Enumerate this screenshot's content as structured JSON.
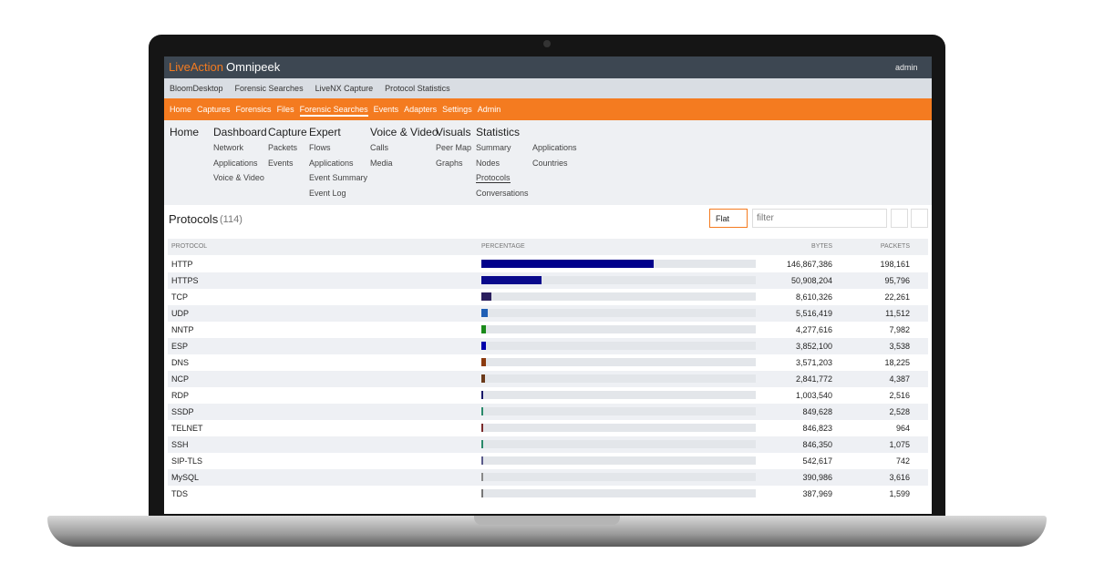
{
  "header": {
    "logo_brand": "LiveAction",
    "logo_product": "Omnipeek",
    "user": "admin"
  },
  "breadcrumb": [
    "BloomDesktop",
    "Forensic Searches",
    "LiveNX Capture",
    "Protocol Statistics"
  ],
  "nav": [
    "Home",
    "Captures",
    "Forensics",
    "Files",
    "Forensic Searches",
    "Events",
    "Adapters",
    "Settings",
    "Admin"
  ],
  "nav_active": 4,
  "menu": [
    {
      "title": "Home",
      "items": []
    },
    {
      "title": "Dashboard",
      "items": [
        "Network",
        "Applications",
        "Voice & Video"
      ]
    },
    {
      "title": "Capture",
      "items": [
        "Packets",
        "Events"
      ]
    },
    {
      "title": "Expert",
      "items": [
        "Flows",
        "Applications",
        "Event Summary",
        "Event Log"
      ]
    },
    {
      "title": "Voice & Video",
      "items": [
        "Calls",
        "Media"
      ]
    },
    {
      "title": "Visuals",
      "items": [
        "Peer Map",
        "Graphs"
      ]
    },
    {
      "title": "Statistics",
      "items": [
        "Summary",
        "Nodes",
        "Protocols",
        "Conversations"
      ],
      "more_items": [
        "Applications",
        "Countries"
      ]
    }
  ],
  "panel": {
    "title": "Protocols",
    "count": "(114)",
    "view": "Flat",
    "filter_placeholder": "filter"
  },
  "table": {
    "columns": [
      "PROTOCOL",
      "PERCENTAGE",
      "BYTES",
      "PACKETS"
    ],
    "rows": [
      {
        "protocol": "HTTP",
        "percentage": 62.8,
        "color": "#00008b",
        "bytes": "146,867,386",
        "packets": "198,161"
      },
      {
        "protocol": "HTTPS",
        "percentage": 21.8,
        "color": "#0a0a8c",
        "bytes": "50,908,204",
        "packets": "95,796"
      },
      {
        "protocol": "TCP",
        "percentage": 3.7,
        "color": "#2b1f5e",
        "bytes": "8,610,326",
        "packets": "22,261"
      },
      {
        "protocol": "UDP",
        "percentage": 2.4,
        "color": "#1f5fb5",
        "bytes": "5,516,419",
        "packets": "11,512"
      },
      {
        "protocol": "NNTP",
        "percentage": 1.8,
        "color": "#1a8a1a",
        "bytes": "4,277,616",
        "packets": "7,982"
      },
      {
        "protocol": "ESP",
        "percentage": 1.6,
        "color": "#0000aa",
        "bytes": "3,852,100",
        "packets": "3,538"
      },
      {
        "protocol": "DNS",
        "percentage": 1.5,
        "color": "#8b3a0f",
        "bytes": "3,571,203",
        "packets": "18,225"
      },
      {
        "protocol": "NCP",
        "percentage": 1.2,
        "color": "#6b3a1a",
        "bytes": "2,841,772",
        "packets": "4,387"
      },
      {
        "protocol": "RDP",
        "percentage": 0.4,
        "color": "#1a1a6a",
        "bytes": "1,003,540",
        "packets": "2,516"
      },
      {
        "protocol": "SSDP",
        "percentage": 0.4,
        "color": "#2a8a6a",
        "bytes": "849,628",
        "packets": "2,528"
      },
      {
        "protocol": "TELNET",
        "percentage": 0.4,
        "color": "#7a2a2a",
        "bytes": "846,823",
        "packets": "964"
      },
      {
        "protocol": "SSH",
        "percentage": 0.4,
        "color": "#2a8a6a",
        "bytes": "846,350",
        "packets": "1,075"
      },
      {
        "protocol": "SIP-TLS",
        "percentage": 0.2,
        "color": "#5a5a8a",
        "bytes": "542,617",
        "packets": "742"
      },
      {
        "protocol": "MySQL",
        "percentage": 0.2,
        "color": "#888888",
        "bytes": "390,986",
        "packets": "3,616"
      },
      {
        "protocol": "TDS",
        "percentage": 0.2,
        "color": "#777777",
        "bytes": "387,969",
        "packets": "1,599"
      }
    ]
  }
}
